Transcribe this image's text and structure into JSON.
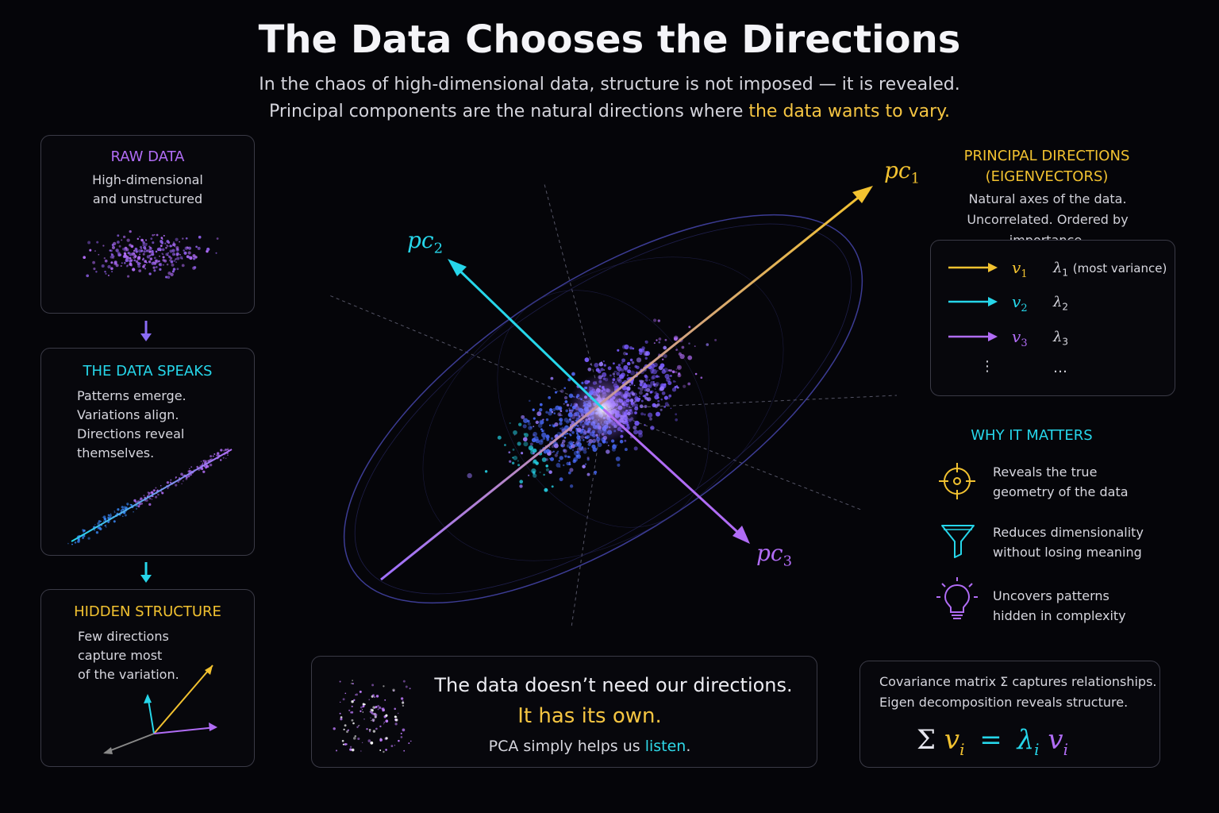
{
  "header": {
    "title": "The Data Chooses the Directions",
    "subtitle_line1": "In the chaos of high-dimensional data, structure is not imposed — it is revealed.",
    "subtitle_line2_pre": "Principal components are the natural directions where ",
    "subtitle_line2_hl": "the data wants to vary."
  },
  "left": {
    "raw": {
      "heading": "RAW DATA",
      "line1": "High-dimensional",
      "line2": "and unstructured"
    },
    "speaks": {
      "heading": "THE DATA SPEAKS",
      "line1": "Patterns emerge.",
      "line2": "Variations align.",
      "line3": "Directions reveal",
      "line4": "themselves."
    },
    "hidden": {
      "heading": "HIDDEN STRUCTURE",
      "line1": "Few directions",
      "line2": "capture most",
      "line3": "of the variation."
    }
  },
  "center": {
    "pc1": "pc",
    "pc1_sub": "1",
    "pc2": "pc",
    "pc2_sub": "2",
    "pc3": "pc",
    "pc3_sub": "3"
  },
  "right": {
    "title_line1": "PRINCIPAL DIRECTIONS",
    "title_line2": "(EIGENVECTORS)",
    "desc_line1": "Natural axes of the data.",
    "desc_line2": "Uncorrelated. Ordered by importance.",
    "rows": [
      {
        "v": "v",
        "sub": "1",
        "lam": "λ",
        "lam_sub": "1",
        "note": "(most variance)"
      },
      {
        "v": "v",
        "sub": "2",
        "lam": "λ",
        "lam_sub": "2",
        "note": ""
      },
      {
        "v": "v",
        "sub": "3",
        "lam": "λ",
        "lam_sub": "3",
        "note": ""
      }
    ],
    "more_dots": "⋮",
    "more_ellipsis": "…",
    "why_title": "WHY IT MATTERS",
    "why": [
      {
        "icon": "crosshair-icon",
        "line1": "Reveals the true",
        "line2": "geometry of the data"
      },
      {
        "icon": "funnel-icon",
        "line1": "Reduces dimensionality",
        "line2": "without losing meaning"
      },
      {
        "icon": "lightbulb-icon",
        "line1": "Uncovers patterns",
        "line2": "hidden in complexity"
      }
    ]
  },
  "quote": {
    "line1": "The data doesn’t need our directions.",
    "line2": "It has its own.",
    "line3_pre": "PCA simply helps us ",
    "line3_hl": "listen",
    "line3_post": "."
  },
  "formula": {
    "line1": "Covariance matrix Σ captures relationships.",
    "line2": "Eigen decomposition reveals structure.",
    "sigma": "Σ",
    "v": "v",
    "i": "i",
    "eq": "=",
    "lambda": "λ"
  },
  "colors": {
    "yellow": "#f2c230",
    "cyan": "#26d6ea",
    "purple": "#b06cf5",
    "blue": "#4a6cff"
  }
}
